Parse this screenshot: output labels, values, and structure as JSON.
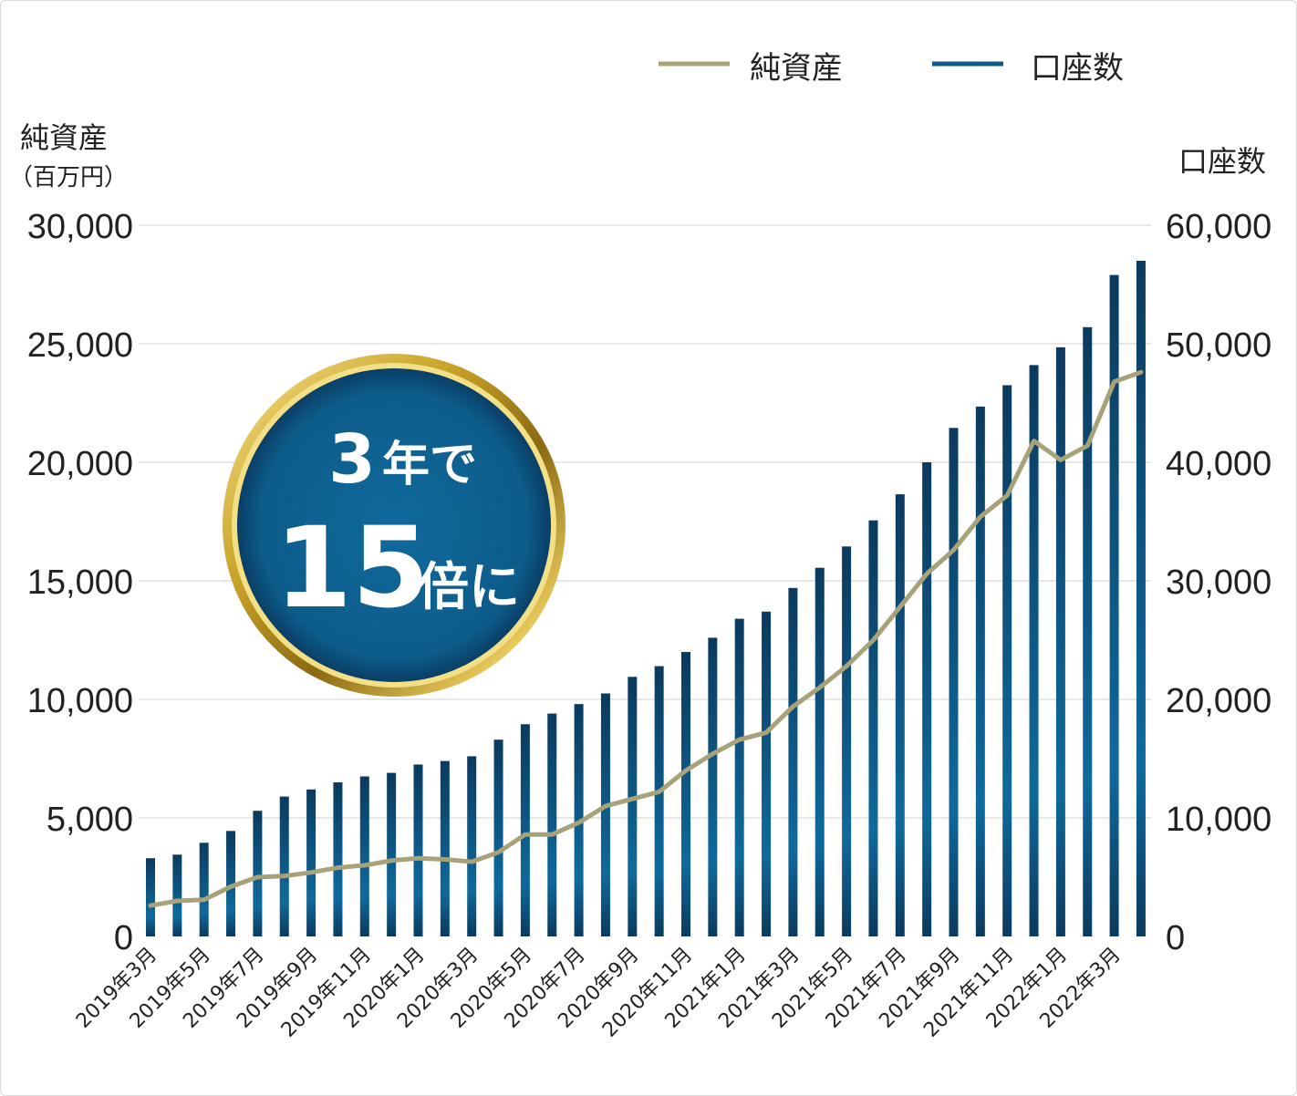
{
  "chart_data": {
    "type": "bar",
    "legend": {
      "position": "top-right",
      "items": [
        {
          "label": "純資産",
          "color": "#a7a27a",
          "kind": "line"
        },
        {
          "label": "口座数",
          "color": "#0e5a86",
          "kind": "line"
        }
      ]
    },
    "left_axis": {
      "title": "純資産",
      "unit": "（百万円）",
      "ylim": [
        0,
        30000
      ],
      "ticks": [
        0,
        5000,
        10000,
        15000,
        20000,
        25000,
        30000
      ],
      "tick_labels": [
        "0",
        "5,000",
        "10,000",
        "15,000",
        "20,000",
        "25,000",
        "30,000"
      ]
    },
    "right_axis": {
      "title": "口座数",
      "ylim": [
        0,
        60000
      ],
      "ticks": [
        0,
        10000,
        20000,
        30000,
        40000,
        50000,
        60000
      ],
      "tick_labels": [
        "0",
        "10,000",
        "20,000",
        "30,000",
        "40,000",
        "50,000",
        "60,000"
      ]
    },
    "x_tick_labels": [
      "2019年3月",
      "2019年5月",
      "2019年7月",
      "2019年9月",
      "2019年11月",
      "2020年1月",
      "2020年3月",
      "2020年5月",
      "2020年7月",
      "2020年9月",
      "2020年11月",
      "2021年1月",
      "2021年3月",
      "2021年5月",
      "2021年7月",
      "2021年9月",
      "2021年11月",
      "2022年1月",
      "2022年3月"
    ],
    "categories": [
      "2019-03",
      "2019-04",
      "2019-05",
      "2019-06",
      "2019-07",
      "2019-08",
      "2019-09",
      "2019-10",
      "2019-11",
      "2019-12",
      "2020-01",
      "2020-02",
      "2020-03",
      "2020-04",
      "2020-05",
      "2020-06",
      "2020-07",
      "2020-08",
      "2020-09",
      "2020-10",
      "2020-11",
      "2020-12",
      "2021-01",
      "2021-02",
      "2021-03",
      "2021-04",
      "2021-05",
      "2021-06",
      "2021-07",
      "2021-08",
      "2021-09",
      "2021-10",
      "2021-11",
      "2021-12",
      "2022-01",
      "2022-02",
      "2022-03",
      "2022-04"
    ],
    "grid": true,
    "series": [
      {
        "name": "口座数",
        "type": "bar",
        "axis": "right",
        "color_light": "#0f6a9c",
        "color_dark": "#0b3a5e",
        "values": [
          6600,
          6900,
          7900,
          8900,
          10600,
          11800,
          12400,
          13000,
          13500,
          13800,
          14500,
          14800,
          15200,
          16600,
          17900,
          18800,
          19600,
          20500,
          21900,
          22800,
          24000,
          25200,
          26800,
          27400,
          29400,
          31100,
          32900,
          35100,
          37300,
          40000,
          42900,
          44700,
          46500,
          48200,
          49700,
          51400,
          55800,
          57000
        ]
      },
      {
        "name": "純資産",
        "type": "line",
        "axis": "left",
        "color": "#a7a27a",
        "values": [
          1300,
          1500,
          1550,
          2100,
          2500,
          2550,
          2700,
          2900,
          3000,
          3200,
          3300,
          3250,
          3150,
          3550,
          4300,
          4300,
          4800,
          5500,
          5800,
          6100,
          7000,
          7700,
          8300,
          8600,
          9700,
          10500,
          11400,
          12500,
          13900,
          15300,
          16300,
          17700,
          18600,
          20900,
          20100,
          20700,
          23400,
          23800
        ]
      }
    ]
  },
  "badge": {
    "line1_number": "3",
    "line1_text": "年で",
    "line2_number": "15",
    "line2_text": "倍に"
  }
}
